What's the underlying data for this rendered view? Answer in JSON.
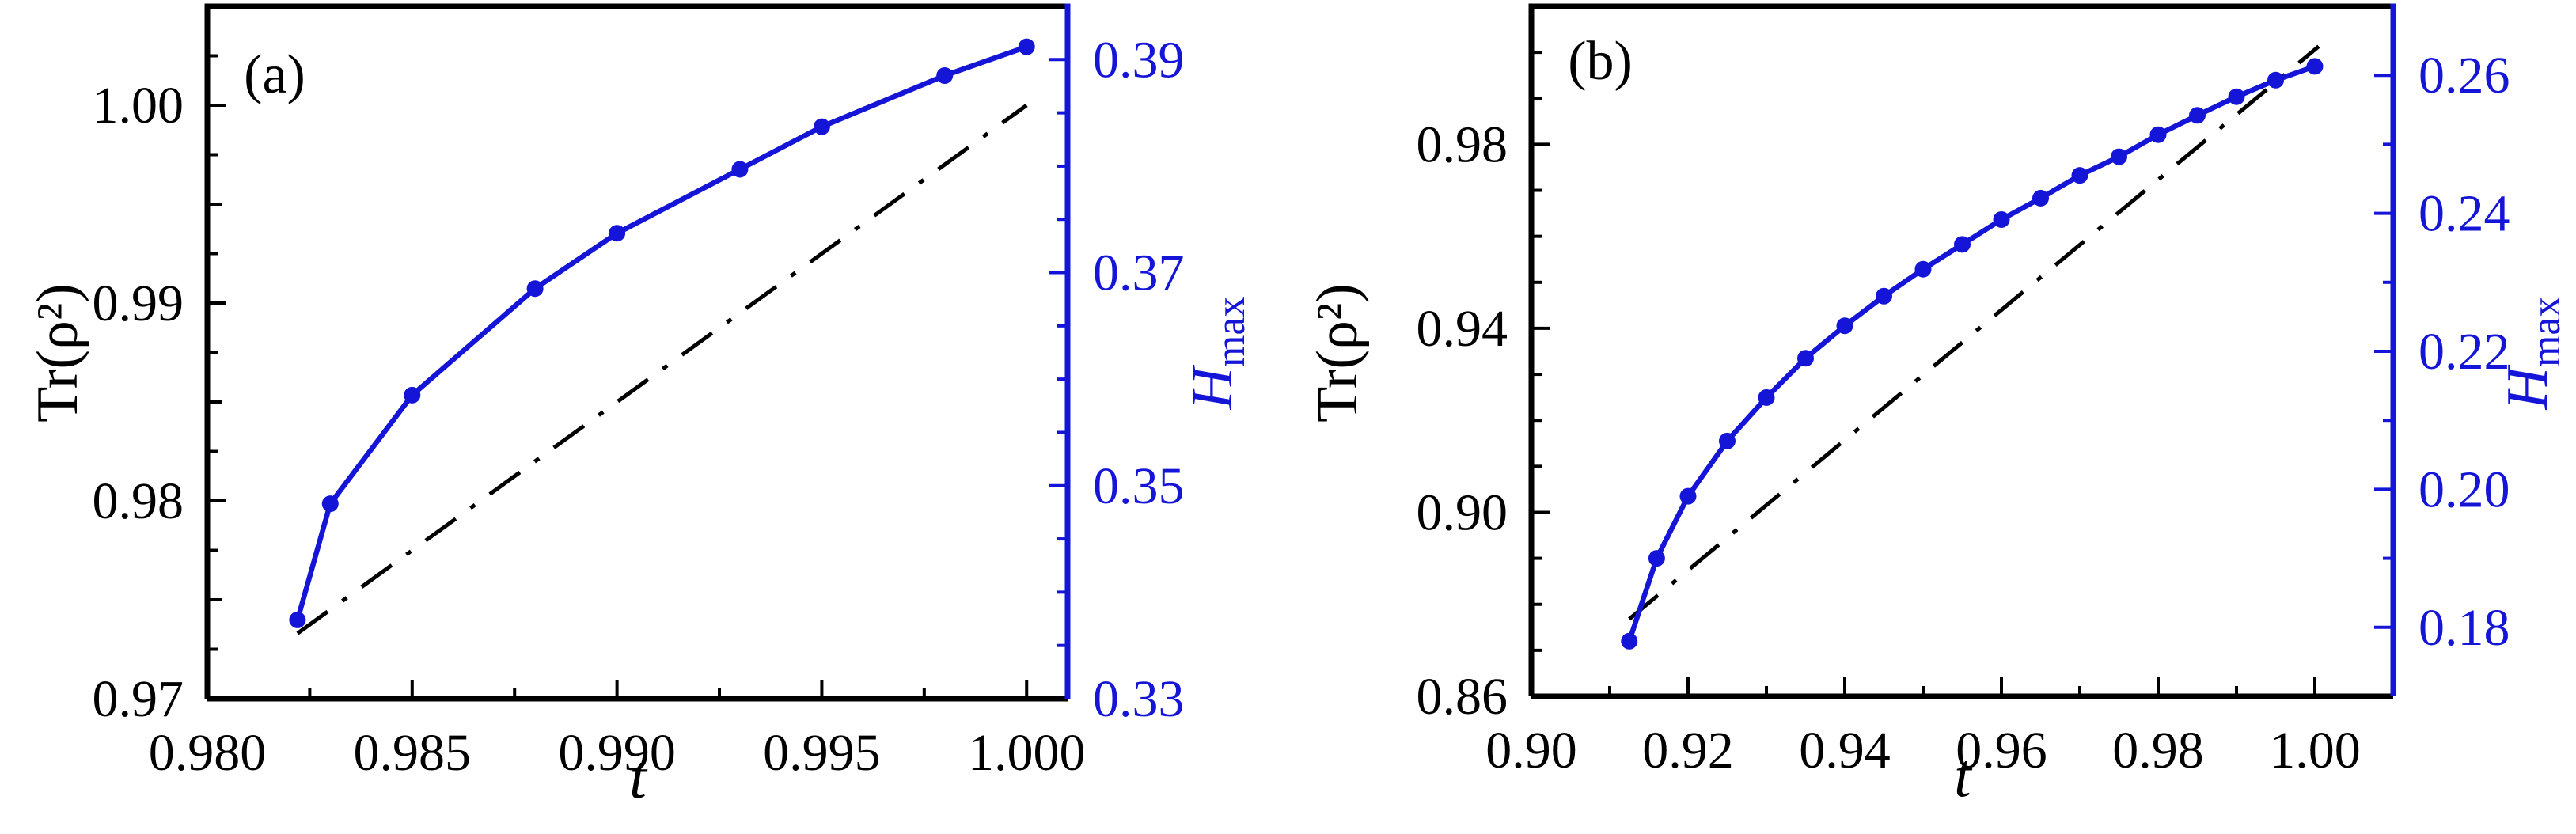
{
  "figure": {
    "background": "#ffffff",
    "description": "Two-panel dual-axis line chart: purity Tr(rho^2) (black dash-dot, left axis) and H_max (blue circles, right axis) versus t"
  },
  "colors": {
    "accent_blue": "#1515d8",
    "black": "#000000",
    "background": "#ffffff"
  },
  "chart_data": [
    {
      "type": "line",
      "panel_label": "(a)",
      "xlabel": "t",
      "ylabel_left": "Tr(ρ²)",
      "ylabel_right_base": "H",
      "ylabel_right_sub": "max",
      "grid": false,
      "legend": null,
      "xlim": [
        0.98,
        1.001
      ],
      "xticks": {
        "values": [
          0.98,
          0.985,
          0.99,
          0.995,
          1.0
        ],
        "labels": [
          "0.980",
          "0.985",
          "0.990",
          "0.995",
          "1.000"
        ],
        "minor_step": 0.0025
      },
      "yleft": {
        "lim": [
          0.97,
          1.005
        ],
        "values": [
          0.97,
          0.98,
          0.99,
          1.0
        ],
        "labels": [
          "0.97",
          "0.98",
          "0.99",
          "1.00"
        ],
        "minor_step": 0.0025,
        "medium_step": 0.005
      },
      "yright": {
        "lim": [
          0.33,
          0.395
        ],
        "values": [
          0.33,
          0.35,
          0.37,
          0.39
        ],
        "labels": [
          "0.33",
          "0.35",
          "0.37",
          "0.39"
        ],
        "minor_step": 0.005
      },
      "series": [
        {
          "name": "H_max",
          "axis": "right",
          "style": "solid",
          "marker": "circle",
          "color": "#1515d8",
          "x": [
            0.9822,
            0.983,
            0.985,
            0.988,
            0.99,
            0.993,
            0.995,
            0.998,
            1.0
          ],
          "y": [
            0.3374,
            0.3483,
            0.3585,
            0.3685,
            0.3737,
            0.3797,
            0.3837,
            0.3885,
            0.3912
          ]
        },
        {
          "name": "Tr(rho^2)",
          "axis": "left",
          "style": "dashdot",
          "marker": "none",
          "color": "#000000",
          "x": [
            0.9822,
            1.0
          ],
          "y": [
            0.9733,
            1.0
          ]
        }
      ]
    },
    {
      "type": "line",
      "panel_label": "(b)",
      "xlabel": "t",
      "ylabel_left": "Tr(ρ²)",
      "ylabel_right_base": "H",
      "ylabel_right_sub": "max",
      "grid": false,
      "legend": null,
      "xlim": [
        0.9,
        1.01
      ],
      "xticks": {
        "values": [
          0.9,
          0.92,
          0.94,
          0.96,
          0.98,
          1.0
        ],
        "labels": [
          "0.90",
          "0.92",
          "0.94",
          "0.96",
          "0.98",
          "1.00"
        ],
        "minor_step": 0.01
      },
      "yleft": {
        "lim": [
          0.86,
          1.01
        ],
        "values": [
          0.86,
          0.9,
          0.94,
          0.98
        ],
        "labels": [
          "0.86",
          "0.90",
          "0.94",
          "0.98"
        ],
        "minor_step": 0.01
      },
      "yright": {
        "lim": [
          0.17,
          0.27
        ],
        "values": [
          0.18,
          0.2,
          0.22,
          0.24,
          0.26
        ],
        "labels": [
          "0.18",
          "0.20",
          "0.22",
          "0.24",
          "0.26"
        ],
        "minor_step": 0.01
      },
      "series": [
        {
          "name": "H_max",
          "axis": "right",
          "style": "solid",
          "marker": "circle",
          "color": "#1515d8",
          "x": [
            0.9125,
            0.916,
            0.92,
            0.925,
            0.93,
            0.935,
            0.94,
            0.945,
            0.95,
            0.955,
            0.96,
            0.965,
            0.97,
            0.975,
            0.98,
            0.985,
            0.99,
            0.995,
            1.0
          ],
          "y": [
            0.178,
            0.19,
            0.199,
            0.207,
            0.2133,
            0.219,
            0.2237,
            0.228,
            0.2319,
            0.2355,
            0.2391,
            0.2422,
            0.2455,
            0.2482,
            0.2514,
            0.2542,
            0.2569,
            0.2593,
            0.2613
          ]
        },
        {
          "name": "Tr(rho^2)",
          "axis": "left",
          "style": "dashdot",
          "marker": "none",
          "color": "#000000",
          "x": [
            0.9125,
            1.0005
          ],
          "y": [
            0.8768,
            1.0013
          ]
        }
      ]
    }
  ]
}
